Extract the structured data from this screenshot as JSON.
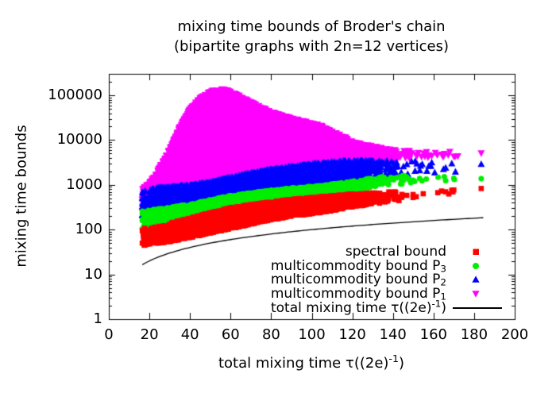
{
  "chart_data": {
    "type": "scatter",
    "title_line1": "mixing time bounds of Broder's chain",
    "title_line2": "(bipartite graphs with 2n=12 vertices)",
    "ylabel": "mixing time bounds",
    "xlabel_parts": [
      {
        "t": "total mixing time τ((2e)"
      },
      {
        "sup": "-1"
      },
      {
        "t": ")"
      }
    ],
    "axes": {
      "x": {
        "scale": "linear",
        "min": 0,
        "max": 200,
        "tick_values": [
          0,
          20,
          40,
          60,
          80,
          100,
          120,
          140,
          160,
          180,
          200
        ],
        "tick_labels": [
          "0",
          "20",
          "40",
          "60",
          "80",
          "100",
          "120",
          "140",
          "160",
          "180",
          "200"
        ]
      },
      "y": {
        "scale": "log",
        "min": 1,
        "max": 302000,
        "tick_values": [
          1,
          10,
          100,
          1000,
          10000,
          100000
        ],
        "tick_labels": [
          "1",
          "10",
          "100",
          "1000",
          "10000",
          "100000"
        ],
        "minor_ticks_per_decade": true
      }
    },
    "grid": false,
    "legend_position": "inside bottom right",
    "x_density_knots": [
      [
        16.5,
        0.15
      ],
      [
        20,
        0.8
      ],
      [
        24,
        1.8
      ],
      [
        30,
        2.6
      ],
      [
        40,
        3.6
      ],
      [
        50,
        4.0
      ],
      [
        60,
        3.8
      ],
      [
        70,
        3.4
      ],
      [
        80,
        3.0
      ],
      [
        90,
        2.6
      ],
      [
        100,
        2.2
      ],
      [
        110,
        1.7
      ],
      [
        118,
        1.2
      ],
      [
        126,
        0.6
      ],
      [
        134,
        0.3
      ],
      [
        142,
        0.11
      ],
      [
        152,
        0.05
      ],
      [
        162,
        0.028
      ],
      [
        172,
        0.01
      ]
    ],
    "seed": 7,
    "series": [
      {
        "key": "spectral",
        "label_parts": [
          {
            "t": "spectral bound"
          }
        ],
        "color": "#ff0000",
        "marker": "square",
        "count": 3800,
        "envelope_log10": [
          [
            16,
            1.63,
            2.05
          ],
          [
            20,
            1.68,
            2.02
          ],
          [
            25,
            1.7,
            2.08
          ],
          [
            30,
            1.73,
            2.15
          ],
          [
            40,
            1.82,
            2.26
          ],
          [
            50,
            1.92,
            2.38
          ],
          [
            60,
            2.02,
            2.49
          ],
          [
            70,
            2.12,
            2.56
          ],
          [
            80,
            2.22,
            2.62
          ],
          [
            90,
            2.3,
            2.68
          ],
          [
            100,
            2.35,
            2.72
          ],
          [
            110,
            2.42,
            2.76
          ],
          [
            120,
            2.5,
            2.8
          ],
          [
            130,
            2.57,
            2.82
          ],
          [
            140,
            2.63,
            2.85
          ],
          [
            155,
            2.72,
            2.88
          ],
          [
            172,
            2.82,
            2.95
          ]
        ],
        "extra_points": [
          [
            16.5,
            50
          ],
          [
            16.5,
            95
          ],
          [
            20,
            60
          ],
          [
            166,
            700
          ],
          [
            169,
            760
          ],
          [
            183.5,
            830
          ]
        ]
      },
      {
        "key": "P3",
        "label_parts": [
          {
            "t": "multicommodity bound P"
          },
          {
            "sub": "3"
          }
        ],
        "color": "#00ee00",
        "marker": "circle",
        "count": 3400,
        "envelope_log10": [
          [
            16,
            1.98,
            2.42
          ],
          [
            25,
            2.02,
            2.47
          ],
          [
            40,
            2.13,
            2.57
          ],
          [
            50,
            2.26,
            2.67
          ],
          [
            60,
            2.4,
            2.76
          ],
          [
            70,
            2.5,
            2.82
          ],
          [
            80,
            2.58,
            2.88
          ],
          [
            90,
            2.65,
            2.93
          ],
          [
            100,
            2.7,
            2.97
          ],
          [
            110,
            2.76,
            3.02
          ],
          [
            120,
            2.84,
            3.08
          ],
          [
            130,
            2.95,
            3.16
          ],
          [
            140,
            3.0,
            3.2
          ],
          [
            155,
            3.05,
            3.22
          ],
          [
            172,
            3.08,
            3.2
          ]
        ],
        "extra_points": [
          [
            16.5,
            105
          ],
          [
            16.5,
            160
          ],
          [
            16.5,
            230
          ],
          [
            166,
            1250
          ],
          [
            170,
            1400
          ],
          [
            183.5,
            1380
          ]
        ]
      },
      {
        "key": "P2",
        "label_parts": [
          {
            "t": "multicommodity bound P"
          },
          {
            "sub": "2"
          }
        ],
        "color": "#0000ff",
        "marker": "triangle-up",
        "count": 4800,
        "envelope_log10": [
          [
            16,
            2.3,
            2.85
          ],
          [
            25,
            2.38,
            2.95
          ],
          [
            40,
            2.5,
            3.0
          ],
          [
            50,
            2.6,
            3.07
          ],
          [
            60,
            2.72,
            3.17
          ],
          [
            70,
            2.82,
            3.27
          ],
          [
            80,
            2.9,
            3.35
          ],
          [
            90,
            2.95,
            3.42
          ],
          [
            100,
            2.98,
            3.48
          ],
          [
            110,
            3.05,
            3.52
          ],
          [
            120,
            3.1,
            3.55
          ],
          [
            130,
            3.18,
            3.55
          ],
          [
            140,
            3.22,
            3.55
          ],
          [
            155,
            3.25,
            3.53
          ],
          [
            172,
            3.26,
            3.5
          ]
        ],
        "extra_points": [
          [
            16.5,
            210
          ],
          [
            16.5,
            320
          ],
          [
            16.5,
            500
          ],
          [
            17,
            650
          ],
          [
            166,
            2400
          ],
          [
            169,
            3000
          ],
          [
            183.5,
            2900
          ]
        ]
      },
      {
        "key": "P1",
        "label_parts": [
          {
            "t": "multicommodity bound P"
          },
          {
            "sub": "1"
          }
        ],
        "color": "#ff00ff",
        "marker": "triangle-down",
        "count": 9000,
        "envelope_log10": [
          [
            16,
            2.4,
            2.9
          ],
          [
            20,
            2.5,
            3.05
          ],
          [
            25,
            2.65,
            3.4
          ],
          [
            30,
            2.8,
            3.8
          ],
          [
            35,
            2.88,
            4.3
          ],
          [
            40,
            2.95,
            4.7
          ],
          [
            45,
            3.0,
            4.95
          ],
          [
            50,
            3.05,
            5.1
          ],
          [
            55,
            3.09,
            5.16
          ],
          [
            60,
            3.12,
            5.1
          ],
          [
            65,
            3.16,
            4.98
          ],
          [
            70,
            3.2,
            4.86
          ],
          [
            75,
            3.24,
            4.74
          ],
          [
            80,
            3.28,
            4.64
          ],
          [
            85,
            3.3,
            4.56
          ],
          [
            90,
            3.33,
            4.5
          ],
          [
            95,
            3.35,
            4.44
          ],
          [
            100,
            3.37,
            4.4
          ],
          [
            105,
            3.4,
            4.32
          ],
          [
            110,
            3.42,
            4.2
          ],
          [
            115,
            3.45,
            4.1
          ],
          [
            120,
            3.48,
            3.98
          ],
          [
            125,
            3.49,
            3.92
          ],
          [
            130,
            3.5,
            3.87
          ],
          [
            140,
            3.55,
            3.8
          ],
          [
            155,
            3.6,
            3.74
          ],
          [
            172,
            3.62,
            3.7
          ]
        ],
        "extra_points": [
          [
            16.5,
            260
          ],
          [
            16.5,
            420
          ],
          [
            17,
            700
          ],
          [
            17.5,
            560
          ],
          [
            165,
            4700
          ],
          [
            168,
            5500
          ],
          [
            170,
            4300
          ],
          [
            183.5,
            5100
          ]
        ]
      }
    ],
    "draw_order": [
      3,
      2,
      1,
      0
    ],
    "reference_line": {
      "label_parts": [
        {
          "t": "total mixing time τ((2e)"
        },
        {
          "sup": "-1"
        },
        {
          "t": ")"
        }
      ],
      "relation": "y = x",
      "x_from": 16.5,
      "x_to": 185,
      "color": "#000000"
    }
  }
}
